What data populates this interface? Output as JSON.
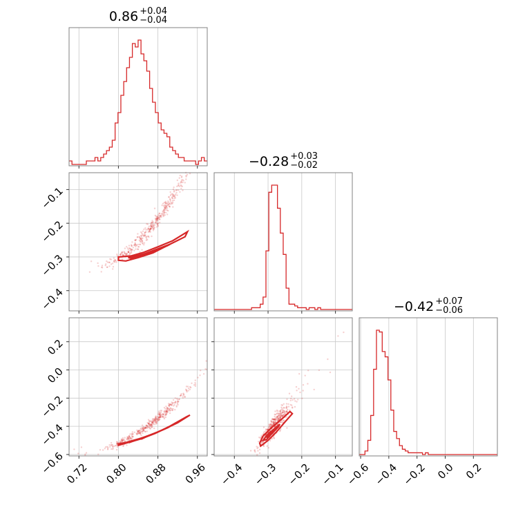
{
  "chart_data": {
    "type": "corner",
    "color": "#d62728",
    "grid": true,
    "parameters": [
      {
        "title": {
          "median": "0.86",
          "plus": "+0.04",
          "minus": "−0.04"
        },
        "range": [
          0.7,
          0.98
        ],
        "ticks": [
          {
            "value": 0.72,
            "label": "0.72"
          },
          {
            "value": 0.8,
            "label": "0.80"
          },
          {
            "value": 0.88,
            "label": "0.88"
          },
          {
            "value": 0.96,
            "label": "0.96"
          }
        ]
      },
      {
        "title": {
          "median": "−0.28",
          "plus": "+0.03",
          "minus": "−0.02"
        },
        "range": [
          -0.46,
          -0.05
        ],
        "ticks": [
          {
            "value": -0.4,
            "label": "−0.4"
          },
          {
            "value": -0.3,
            "label": "−0.3"
          },
          {
            "value": -0.2,
            "label": "−0.2"
          },
          {
            "value": -0.1,
            "label": "−0.1"
          }
        ]
      },
      {
        "title": {
          "median": "−0.42",
          "plus": "+0.07",
          "minus": "−0.06"
        },
        "range": [
          -0.61,
          0.37
        ],
        "ticks": [
          {
            "value": -0.6,
            "label": "−0.6"
          },
          {
            "value": -0.4,
            "label": "−0.4"
          },
          {
            "value": -0.2,
            "label": "−0.2"
          },
          {
            "value": 0.0,
            "label": "0.0"
          },
          {
            "value": 0.2,
            "label": "0.2"
          }
        ]
      }
    ],
    "histograms": [
      {
        "bin_start": 0.7,
        "bin_width": 0.00583,
        "counts": [
          1,
          0,
          0,
          0,
          0,
          0,
          1,
          1,
          1,
          2,
          1,
          2,
          3,
          4,
          5,
          7,
          12,
          15,
          20,
          24,
          28,
          31,
          35,
          34,
          36,
          32,
          30,
          27,
          22,
          18,
          15,
          12,
          10,
          9,
          8,
          5,
          4,
          3,
          2,
          2,
          1,
          1,
          1,
          1,
          0,
          1,
          2,
          1
        ]
      },
      {
        "bin_start": -0.46,
        "bin_width": 0.00854,
        "counts": [
          0,
          0,
          0,
          0,
          0,
          0,
          0,
          0,
          0,
          0,
          0,
          0,
          0,
          1,
          1,
          1,
          3,
          7,
          33,
          66,
          70,
          70,
          57,
          43,
          31,
          12,
          3,
          3,
          2,
          1,
          1,
          1,
          0,
          1,
          1,
          0,
          1,
          0,
          0,
          0,
          0,
          0,
          0,
          0,
          0,
          0,
          0,
          0
        ]
      },
      {
        "bin_start": -0.61,
        "bin_width": 0.0204,
        "counts": [
          0,
          0,
          2,
          8,
          22,
          48,
          70,
          69,
          58,
          55,
          42,
          25,
          13,
          9,
          5,
          3,
          2,
          1,
          1,
          1,
          1,
          1,
          0,
          1,
          0,
          0,
          0,
          0,
          0,
          0,
          0,
          0,
          0,
          0,
          0,
          0,
          0,
          0,
          0,
          0,
          0,
          0,
          0,
          0,
          0,
          0,
          0,
          0
        ]
      }
    ],
    "pairs": [
      {
        "x_param": 0,
        "y_param": 1,
        "trend": {
          "x0": 0.8,
          "y0": -0.305,
          "slope": 0.95,
          "curve": 6.5,
          "spread": 0.008
        },
        "contours": [
          [
            [
              0.8,
              -0.3
            ],
            [
              0.825,
              -0.297
            ],
            [
              0.85,
              -0.287
            ],
            [
              0.88,
              -0.27
            ],
            [
              0.91,
              -0.252
            ],
            [
              0.94,
              -0.225
            ],
            [
              0.935,
              -0.24
            ],
            [
              0.905,
              -0.262
            ],
            [
              0.87,
              -0.288
            ],
            [
              0.84,
              -0.302
            ],
            [
              0.815,
              -0.312
            ],
            [
              0.8,
              -0.31
            ]
          ],
          [
            [
              0.82,
              -0.302
            ],
            [
              0.85,
              -0.292
            ],
            [
              0.88,
              -0.276
            ],
            [
              0.905,
              -0.262
            ],
            [
              0.9,
              -0.266
            ],
            [
              0.87,
              -0.284
            ],
            [
              0.845,
              -0.296
            ],
            [
              0.825,
              -0.304
            ]
          ],
          [
            [
              0.845,
              -0.294
            ],
            [
              0.87,
              -0.284
            ],
            [
              0.885,
              -0.276
            ],
            [
              0.88,
              -0.28
            ],
            [
              0.86,
              -0.29
            ],
            [
              0.848,
              -0.296
            ]
          ]
        ]
      },
      {
        "x_param": 0,
        "y_param": 2,
        "trend": {
          "x0": 0.8,
          "y0": -0.52,
          "slope": 1.55,
          "curve": 8.0,
          "spread": 0.012
        },
        "contours": [
          [
            [
              0.8,
              -0.525
            ],
            [
              0.83,
              -0.505
            ],
            [
              0.86,
              -0.47
            ],
            [
              0.89,
              -0.425
            ],
            [
              0.92,
              -0.375
            ],
            [
              0.945,
              -0.32
            ],
            [
              0.938,
              -0.332
            ],
            [
              0.905,
              -0.398
            ],
            [
              0.875,
              -0.45
            ],
            [
              0.845,
              -0.49
            ],
            [
              0.815,
              -0.52
            ],
            [
              0.8,
              -0.535
            ]
          ],
          [
            [
              0.82,
              -0.51
            ],
            [
              0.85,
              -0.48
            ],
            [
              0.88,
              -0.44
            ],
            [
              0.905,
              -0.4
            ],
            [
              0.9,
              -0.41
            ],
            [
              0.87,
              -0.455
            ],
            [
              0.84,
              -0.492
            ],
            [
              0.822,
              -0.515
            ]
          ],
          [
            [
              0.845,
              -0.485
            ],
            [
              0.87,
              -0.455
            ],
            [
              0.885,
              -0.432
            ],
            [
              0.88,
              -0.44
            ],
            [
              0.86,
              -0.468
            ],
            [
              0.847,
              -0.49
            ]
          ]
        ]
      },
      {
        "x_param": 1,
        "y_param": 2,
        "trend": {
          "x0": -0.31,
          "y0": -0.48,
          "slope": 3.0,
          "curve": 3.0,
          "spread": 0.03
        },
        "contours": [
          [
            [
              -0.325,
              -0.52
            ],
            [
              -0.315,
              -0.47
            ],
            [
              -0.29,
              -0.41
            ],
            [
              -0.26,
              -0.35
            ],
            [
              -0.235,
              -0.295
            ],
            [
              -0.228,
              -0.31
            ],
            [
              -0.25,
              -0.37
            ],
            [
              -0.275,
              -0.44
            ],
            [
              -0.3,
              -0.5
            ],
            [
              -0.322,
              -0.54
            ]
          ],
          [
            [
              -0.315,
              -0.5
            ],
            [
              -0.3,
              -0.455
            ],
            [
              -0.28,
              -0.415
            ],
            [
              -0.265,
              -0.385
            ],
            [
              -0.27,
              -0.405
            ],
            [
              -0.288,
              -0.45
            ],
            [
              -0.305,
              -0.495
            ]
          ],
          [
            [
              -0.305,
              -0.478
            ],
            [
              -0.292,
              -0.448
            ],
            [
              -0.282,
              -0.425
            ],
            [
              -0.288,
              -0.445
            ],
            [
              -0.3,
              -0.475
            ]
          ]
        ]
      }
    ]
  }
}
